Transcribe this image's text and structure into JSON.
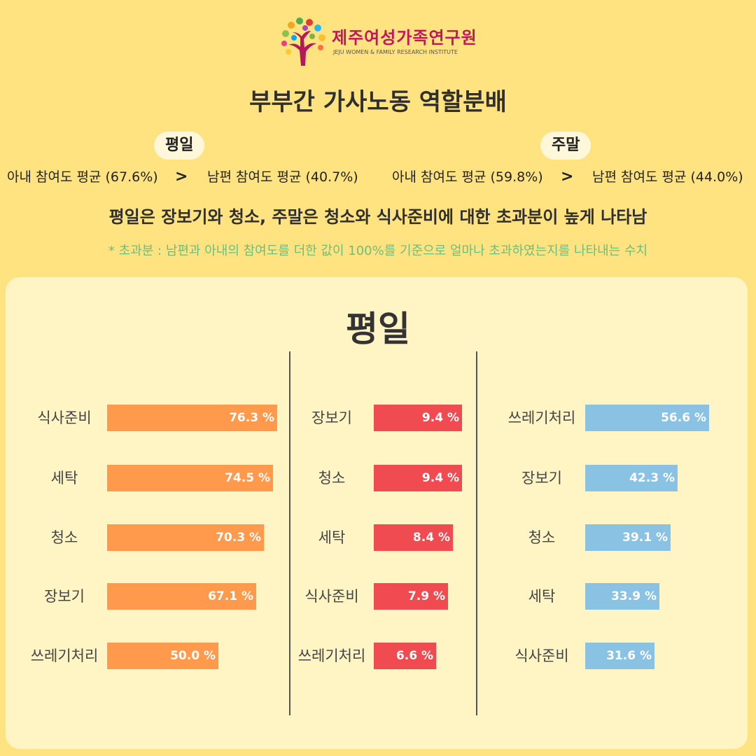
{
  "logo": {
    "name": "제주여성가족연구원",
    "subtitle": "JEJU WOMEN & FAMILY RESEARCH INSTITUTE"
  },
  "title": "부부간 가사노동 역할분배",
  "weekday": {
    "pill": "평일",
    "wife": "아내 참여도 평균 (67.6%)",
    "gt": ">",
    "husband": "남편 참여도 평균 (40.7%)"
  },
  "weekend": {
    "pill": "주말",
    "wife": "아내 참여도 평균 (59.8%)",
    "gt": ">",
    "husband": "남편 참여도 평균 (44.0%)"
  },
  "headline": "평일은 장보기와 청소, 주말은 청소와 식사준비에 대한 초과분이 높게 나타남",
  "footnote": "* 초과분 : 남편과 아내의 참여도를 더한 값이 100%를 기준으로 얼마나 초과하였는지를 나타내는 수치",
  "panel_title": "평일",
  "colors": {
    "orange": "#FF9A4D",
    "red": "#EF4B50",
    "blue": "#89C2E2",
    "background": "#FFE380",
    "panel": "#FFF4C4"
  },
  "chart_data": [
    {
      "type": "bar",
      "orientation": "horizontal",
      "color": "#FF9A4D",
      "categories": [
        "식사준비",
        "세탁",
        "청소",
        "장보기",
        "쓰레기처리"
      ],
      "values": [
        76.3,
        74.5,
        70.3,
        67.1,
        50.0
      ],
      "labels": [
        "76.3 %",
        "74.5 %",
        "70.3 %",
        "67.1 %",
        "50.0 %"
      ]
    },
    {
      "type": "bar",
      "orientation": "horizontal",
      "color": "#EF4B50",
      "categories": [
        "장보기",
        "청소",
        "세탁",
        "식사준비",
        "쓰레기처리"
      ],
      "values": [
        9.4,
        9.4,
        8.4,
        7.9,
        6.6
      ],
      "labels": [
        "9.4 %",
        "9.4 %",
        "8.4 %",
        "7.9 %",
        "6.6 %"
      ]
    },
    {
      "type": "bar",
      "orientation": "horizontal",
      "color": "#89C2E2",
      "categories": [
        "쓰레기처리",
        "장보기",
        "청소",
        "세탁",
        "식사준비"
      ],
      "values": [
        56.6,
        42.3,
        39.1,
        33.9,
        31.6
      ],
      "labels": [
        "56.6 %",
        "42.3 %",
        "39.1 %",
        "33.9 %",
        "31.6 %"
      ]
    }
  ]
}
